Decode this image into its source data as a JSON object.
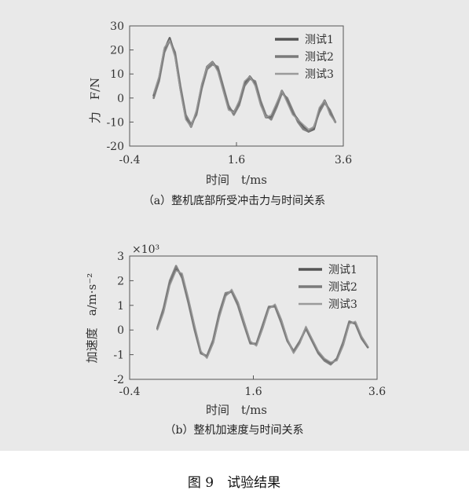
{
  "figure_caption": "图 9　试验结果",
  "colors": {
    "background": "#e9e9e9",
    "series_1": "#555555",
    "series_2": "#7a7a7a",
    "series_3": "#9a9a9a",
    "axis": "#555555"
  },
  "chart_data": [
    {
      "type": "line",
      "caption": "（a）整机底部所受冲击力与时间关系",
      "xlabel": "时间　t/ms",
      "ylabel": "力　F/N",
      "xlim": [
        -0.4,
        3.6
      ],
      "ylim": [
        -20,
        30
      ],
      "x_ticks": [
        "-0.4",
        "1.6",
        "3.6"
      ],
      "y_ticks": [
        "-20",
        "-10",
        "0",
        "10",
        "20",
        "30"
      ],
      "y_multiplier": "",
      "legend_position": "top-right",
      "series": [
        {
          "name": "测试1",
          "x": [
            0.05,
            0.15,
            0.25,
            0.35,
            0.45,
            0.55,
            0.65,
            0.75,
            0.85,
            0.95,
            1.05,
            1.15,
            1.25,
            1.35,
            1.45,
            1.55,
            1.65,
            1.75,
            1.85,
            1.95,
            2.05,
            2.15,
            2.25,
            2.35,
            2.45,
            2.55,
            2.65,
            2.75,
            2.85,
            2.95,
            3.05,
            3.15,
            3.25,
            3.35,
            3.45
          ],
          "y": [
            1,
            8,
            20,
            25,
            18,
            4,
            -8,
            -12,
            -6,
            5,
            13,
            15,
            12,
            4,
            -4,
            -6,
            -2,
            6,
            9,
            6,
            -2,
            -8,
            -8,
            -3,
            3,
            -1,
            -6,
            -9,
            -12,
            -14,
            -13,
            -5,
            -1,
            -6,
            -10
          ]
        },
        {
          "name": "测试2",
          "x": [
            0.05,
            0.15,
            0.25,
            0.35,
            0.45,
            0.55,
            0.65,
            0.75,
            0.85,
            0.95,
            1.05,
            1.15,
            1.25,
            1.35,
            1.45,
            1.55,
            1.65,
            1.75,
            1.85,
            1.95,
            2.05,
            2.15,
            2.25,
            2.35,
            2.45,
            2.55,
            2.65,
            2.75,
            2.85,
            2.95,
            3.05,
            3.15,
            3.25,
            3.35,
            3.45
          ],
          "y": [
            0,
            7,
            19,
            24,
            19,
            5,
            -7,
            -11,
            -7,
            4,
            12,
            14,
            13,
            5,
            -3,
            -7,
            -3,
            5,
            8,
            7,
            -1,
            -7,
            -9,
            -4,
            2,
            0,
            -5,
            -10,
            -13,
            -14,
            -12,
            -6,
            -2,
            -5,
            -10
          ]
        },
        {
          "name": "测试3",
          "x": [
            0.05,
            0.15,
            0.25,
            0.35,
            0.45,
            0.55,
            0.65,
            0.75,
            0.85,
            0.95,
            1.05,
            1.15,
            1.25,
            1.35,
            1.45,
            1.55,
            1.65,
            1.75,
            1.85,
            1.95,
            2.05,
            2.15,
            2.25,
            2.35,
            2.45,
            2.55,
            2.65,
            2.75,
            2.85,
            2.95,
            3.05,
            3.15,
            3.25,
            3.35,
            3.45
          ],
          "y": [
            2,
            9,
            21,
            24,
            17,
            3,
            -9,
            -12,
            -5,
            6,
            13,
            15,
            11,
            3,
            -5,
            -6,
            -1,
            7,
            9,
            5,
            -3,
            -8,
            -7,
            -2,
            3,
            -2,
            -7,
            -9,
            -11,
            -13,
            -12,
            -4,
            -1,
            -7,
            -10
          ]
        }
      ]
    },
    {
      "type": "line",
      "caption": "（b）整机加速度与时间关系",
      "xlabel": "时间　t/ms",
      "ylabel": "加速度　a/m·s⁻²",
      "xlim": [
        -0.4,
        3.6
      ],
      "ylim": [
        -2,
        3
      ],
      "x_ticks": [
        "-0.4",
        "1.6",
        "3.6"
      ],
      "y_ticks": [
        "-2",
        "-1",
        "0",
        "1",
        "2",
        "3"
      ],
      "y_multiplier": "×10³",
      "legend_position": "top-right",
      "series": [
        {
          "name": "测试1",
          "x": [
            0.05,
            0.15,
            0.25,
            0.35,
            0.45,
            0.55,
            0.65,
            0.75,
            0.85,
            0.95,
            1.05,
            1.15,
            1.25,
            1.35,
            1.45,
            1.55,
            1.65,
            1.75,
            1.85,
            1.95,
            2.05,
            2.15,
            2.25,
            2.35,
            2.45,
            2.55,
            2.65,
            2.75,
            2.85,
            2.95,
            3.05,
            3.15,
            3.25,
            3.35,
            3.45
          ],
          "y": [
            0.05,
            0.8,
            1.9,
            2.5,
            2.2,
            1.2,
            0.1,
            -0.9,
            -1.1,
            -0.5,
            0.6,
            1.4,
            1.6,
            1.1,
            0.3,
            -0.5,
            -0.6,
            0.1,
            0.9,
            1.0,
            0.4,
            -0.4,
            -0.9,
            -0.5,
            0.1,
            -0.4,
            -0.9,
            -1.2,
            -1.35,
            -1.2,
            -0.6,
            0.3,
            0.3,
            -0.3,
            -0.7
          ]
        },
        {
          "name": "测试2",
          "x": [
            0.05,
            0.15,
            0.25,
            0.35,
            0.45,
            0.55,
            0.65,
            0.75,
            0.85,
            0.95,
            1.05,
            1.15,
            1.25,
            1.35,
            1.45,
            1.55,
            1.65,
            1.75,
            1.85,
            1.95,
            2.05,
            2.15,
            2.25,
            2.35,
            2.45,
            2.55,
            2.65,
            2.75,
            2.85,
            2.95,
            3.05,
            3.15,
            3.25,
            3.35,
            3.45
          ],
          "y": [
            0.1,
            0.9,
            2.0,
            2.6,
            2.1,
            1.1,
            0.0,
            -0.95,
            -1.05,
            -0.4,
            0.7,
            1.5,
            1.55,
            1.0,
            0.2,
            -0.55,
            -0.55,
            0.2,
            0.95,
            0.95,
            0.3,
            -0.45,
            -0.85,
            -0.45,
            0.05,
            -0.45,
            -0.95,
            -1.25,
            -1.4,
            -1.15,
            -0.5,
            0.35,
            0.25,
            -0.35,
            -0.7
          ]
        },
        {
          "name": "测试3",
          "x": [
            0.05,
            0.15,
            0.25,
            0.35,
            0.45,
            0.55,
            0.65,
            0.75,
            0.85,
            0.95,
            1.05,
            1.15,
            1.25,
            1.35,
            1.45,
            1.55,
            1.65,
            1.75,
            1.85,
            1.95,
            2.05,
            2.15,
            2.25,
            2.35,
            2.45,
            2.55,
            2.65,
            2.75,
            2.85,
            2.95,
            3.05,
            3.15,
            3.25,
            3.35,
            3.45
          ],
          "y": [
            0.0,
            0.7,
            1.8,
            2.4,
            2.3,
            1.3,
            0.2,
            -0.85,
            -1.15,
            -0.55,
            0.5,
            1.35,
            1.65,
            1.15,
            0.35,
            -0.45,
            -0.65,
            0.05,
            0.85,
            1.05,
            0.45,
            -0.35,
            -0.95,
            -0.55,
            0.15,
            -0.35,
            -0.85,
            -1.15,
            -1.3,
            -1.25,
            -0.65,
            0.25,
            0.35,
            -0.25,
            -0.65
          ]
        }
      ]
    }
  ]
}
